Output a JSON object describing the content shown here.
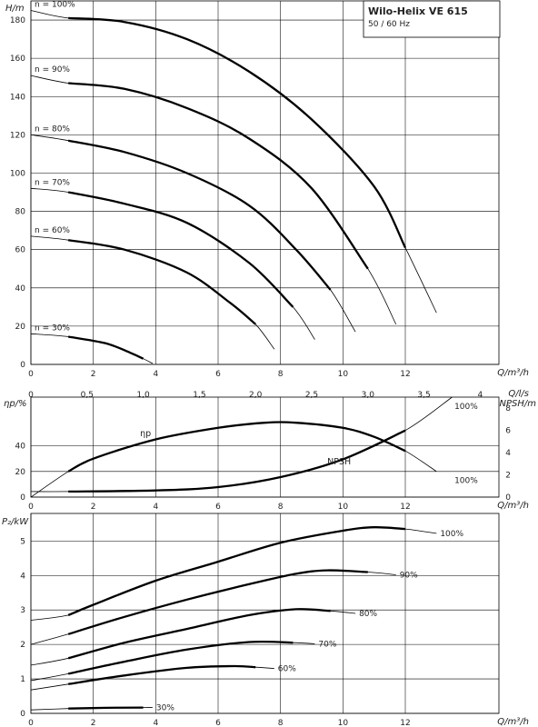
{
  "title": "Wilo-Helix VE 615",
  "subtitle": "50 / 60 Hz",
  "colors": {
    "line": "#000000",
    "background": "#ffffff"
  },
  "chart_data": [
    {
      "type": "line",
      "id": "head",
      "ylabel": "H/m",
      "xlabel": "Q/m³/h",
      "xlim": [
        0,
        15
      ],
      "ylim": [
        0,
        190
      ],
      "xticks": [
        0,
        2,
        4,
        6,
        8,
        10,
        12
      ],
      "yticks": [
        0,
        20,
        40,
        60,
        80,
        100,
        120,
        140,
        160,
        180
      ],
      "x2label": "Q/l/s",
      "x2ticks": [
        "0",
        "0,5",
        "1,0",
        "1,5",
        "2,0",
        "2,5",
        "3,0",
        "3,5",
        "4"
      ],
      "x2values": [
        0,
        0.5,
        1.0,
        1.5,
        2.0,
        2.5,
        3.0,
        3.5,
        4
      ],
      "grid": true,
      "series": [
        {
          "name": "n = 100%",
          "bold_range": [
            1.2,
            12
          ],
          "points": [
            [
              0,
              185
            ],
            [
              1.2,
              181
            ],
            [
              3,
              179
            ],
            [
              5,
              170
            ],
            [
              7,
              153
            ],
            [
              9,
              128
            ],
            [
              11,
              93
            ],
            [
              12,
              61
            ],
            [
              13,
              27
            ]
          ]
        },
        {
          "name": "n = 90%",
          "bold_range": [
            1.2,
            10.8
          ],
          "points": [
            [
              0,
              151
            ],
            [
              1.2,
              147
            ],
            [
              3,
              144
            ],
            [
              5,
              134
            ],
            [
              7,
              118
            ],
            [
              9,
              92
            ],
            [
              10.8,
              50
            ],
            [
              11.7,
              21
            ]
          ]
        },
        {
          "name": "n = 80%",
          "bold_range": [
            1.2,
            9.6
          ],
          "points": [
            [
              0,
              120
            ],
            [
              1.2,
              117
            ],
            [
              3,
              111
            ],
            [
              5,
              100
            ],
            [
              7,
              83
            ],
            [
              8.5,
              60
            ],
            [
              9.6,
              39
            ],
            [
              10.4,
              17
            ]
          ]
        },
        {
          "name": "n = 70%",
          "bold_range": [
            1.2,
            8.4
          ],
          "points": [
            [
              0,
              92
            ],
            [
              1.2,
              90
            ],
            [
              3,
              84
            ],
            [
              5,
              74
            ],
            [
              7,
              53
            ],
            [
              8.4,
              30
            ],
            [
              9.1,
              13
            ]
          ]
        },
        {
          "name": "n = 60%",
          "bold_range": [
            1.2,
            7.2
          ],
          "points": [
            [
              0,
              67
            ],
            [
              1.2,
              65
            ],
            [
              3,
              60
            ],
            [
              5,
              48
            ],
            [
              6.4,
              32
            ],
            [
              7.2,
              21
            ],
            [
              7.8,
              8
            ]
          ]
        },
        {
          "name": "n = 30%",
          "bold_range": [
            1.2,
            3.6
          ],
          "points": [
            [
              0,
              16
            ],
            [
              1.2,
              14.5
            ],
            [
              2.4,
              11
            ],
            [
              3.2,
              6
            ],
            [
              3.6,
              3
            ],
            [
              3.9,
              0.5
            ]
          ]
        }
      ]
    },
    {
      "type": "line",
      "id": "efficiency",
      "ylabel": "ηp/%",
      "y2label": "NPSH/m",
      "xlabel": "Q/m³/h",
      "xlim": [
        0,
        15
      ],
      "ylim": [
        0,
        78
      ],
      "y2lim": [
        0,
        9
      ],
      "xticks": [
        0,
        2,
        4,
        6,
        8,
        10,
        12
      ],
      "yticks": [
        0,
        20,
        40
      ],
      "y2ticks": [
        0,
        2,
        4,
        6,
        8
      ],
      "series": [
        {
          "name": "ηp",
          "axis": "left",
          "label_at": [
            7,
            50.5
          ],
          "bold_range": [
            1.2,
            12
          ],
          "points": [
            [
              0,
              0
            ],
            [
              1.2,
              20
            ],
            [
              2,
              30
            ],
            [
              4,
              45
            ],
            [
              6,
              54
            ],
            [
              7.5,
              58
            ],
            [
              8.5,
              58
            ],
            [
              10,
              54
            ],
            [
              11,
              47
            ],
            [
              12,
              36
            ],
            [
              13,
              20
            ]
          ]
        },
        {
          "name": "NPSH",
          "axis": "right",
          "label_at": [
            19,
            28.5
          ],
          "bold_range": [
            1.2,
            12
          ],
          "points": [
            [
              0,
              0.5
            ],
            [
              1.2,
              0.5
            ],
            [
              4,
              0.6
            ],
            [
              6,
              0.9
            ],
            [
              8,
              1.8
            ],
            [
              10,
              3.4
            ],
            [
              12,
              6
            ],
            [
              13.5,
              9
            ]
          ]
        }
      ],
      "annotations": [
        {
          "text": "100%",
          "x": 13.4,
          "y2": 8.2
        },
        {
          "text": "100%",
          "x": 13.4,
          "y": 13
        }
      ]
    },
    {
      "type": "line",
      "id": "power",
      "ylabel": "P₂/kW",
      "xlabel": "Q/m³/h",
      "xlim": [
        0,
        15
      ],
      "ylim": [
        0,
        5.8
      ],
      "xticks": [
        0,
        2,
        4,
        6,
        8,
        10,
        12
      ],
      "yticks": [
        0,
        1,
        2,
        3,
        4,
        5
      ],
      "series": [
        {
          "name": "100%",
          "label_at": [
            13.4,
            5.2
          ],
          "bold_range": [
            1.2,
            12
          ],
          "points": [
            [
              0,
              2.7
            ],
            [
              1.2,
              2.85
            ],
            [
              2,
              3.15
            ],
            [
              4,
              3.85
            ],
            [
              6,
              4.4
            ],
            [
              8,
              4.95
            ],
            [
              10,
              5.3
            ],
            [
              11,
              5.4
            ],
            [
              12,
              5.35
            ],
            [
              13,
              5.22
            ]
          ]
        },
        {
          "name": "90%",
          "label_at": [
            12,
            4.05
          ],
          "bold_range": [
            1.2,
            10.8
          ],
          "points": [
            [
              0,
              2.0
            ],
            [
              1.2,
              2.3
            ],
            [
              3,
              2.8
            ],
            [
              5,
              3.3
            ],
            [
              7,
              3.75
            ],
            [
              8.5,
              4.05
            ],
            [
              9.5,
              4.15
            ],
            [
              10.8,
              4.1
            ],
            [
              11.7,
              4.02
            ]
          ]
        },
        {
          "name": "80%",
          "label_at": [
            10.6,
            2.93
          ],
          "bold_range": [
            1.2,
            9.6
          ],
          "points": [
            [
              0,
              1.4
            ],
            [
              1.2,
              1.6
            ],
            [
              3,
              2.05
            ],
            [
              5,
              2.45
            ],
            [
              7,
              2.85
            ],
            [
              8.5,
              3.02
            ],
            [
              9.6,
              2.97
            ],
            [
              10.4,
              2.9
            ]
          ]
        },
        {
          "name": "70%",
          "label_at": [
            9.2,
            2.03
          ],
          "bold_range": [
            1.2,
            8.4
          ],
          "points": [
            [
              0,
              0.95
            ],
            [
              1.2,
              1.15
            ],
            [
              3,
              1.5
            ],
            [
              5,
              1.85
            ],
            [
              7,
              2.07
            ],
            [
              8.4,
              2.05
            ],
            [
              9.1,
              2.02
            ]
          ]
        },
        {
          "name": "60%",
          "label_at": [
            7.9,
            1.23
          ],
          "bold_range": [
            1.2,
            7.2
          ],
          "points": [
            [
              0,
              0.68
            ],
            [
              1.2,
              0.85
            ],
            [
              3,
              1.1
            ],
            [
              5,
              1.32
            ],
            [
              6.5,
              1.37
            ],
            [
              7.2,
              1.34
            ],
            [
              7.8,
              1.3
            ]
          ]
        },
        {
          "name": "30%",
          "label_at": [
            4,
            0.15
          ],
          "bold_range": [
            1.2,
            3.6
          ],
          "points": [
            [
              0,
              0.1
            ],
            [
              1.2,
              0.14
            ],
            [
              2.4,
              0.16
            ],
            [
              3.6,
              0.17
            ],
            [
              3.9,
              0.17
            ]
          ]
        }
      ]
    }
  ]
}
